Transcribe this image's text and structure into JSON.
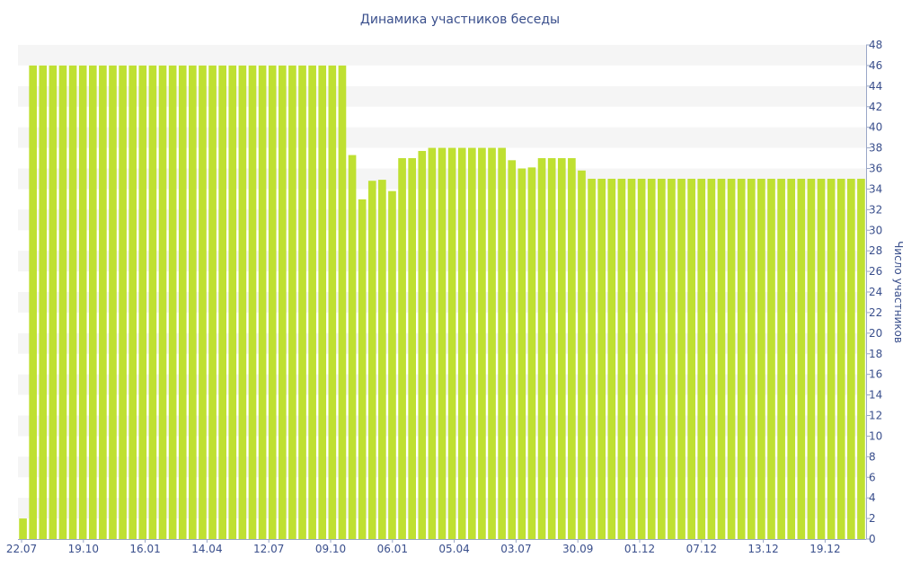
{
  "chart_data": {
    "type": "bar",
    "title": "Динамика участников беседы",
    "xlabel": "",
    "ylabel": "Число участников",
    "ylim": [
      0,
      48
    ],
    "y_ticks": [
      0,
      2,
      4,
      6,
      8,
      10,
      12,
      14,
      16,
      18,
      20,
      22,
      24,
      26,
      28,
      30,
      32,
      34,
      36,
      38,
      40,
      42,
      44,
      46,
      48
    ],
    "x_tick_labels": [
      "22.07",
      "19.10",
      "16.01",
      "14.04",
      "12.07",
      "09.10",
      "06.01",
      "05.04",
      "03.07",
      "30.09",
      "01.12",
      "07.12",
      "13.12",
      "19.12"
    ],
    "y_axis_position": "right",
    "grid": "alternating horizontal bands",
    "bar_color": "#bfe032",
    "series": [
      {
        "values": [
          2,
          46,
          46,
          46,
          46,
          46,
          46,
          46,
          46,
          46,
          46,
          46,
          46,
          46,
          46,
          46,
          46,
          46,
          46,
          46,
          46,
          46,
          46,
          46,
          46,
          46,
          46,
          46,
          46,
          46,
          46,
          46,
          46,
          37.3,
          33,
          34.8,
          34.9,
          33.8,
          37,
          37,
          37.7,
          38,
          38,
          38,
          38,
          38,
          38,
          38,
          38,
          36.8,
          36,
          36.1,
          37,
          37,
          37,
          37,
          35.8,
          35,
          35,
          35,
          35,
          35,
          35,
          35,
          35,
          35,
          35,
          35,
          35,
          35,
          35,
          35,
          35,
          35,
          35,
          35,
          35,
          35,
          35,
          35,
          35,
          35,
          35,
          35,
          35
        ]
      }
    ]
  }
}
